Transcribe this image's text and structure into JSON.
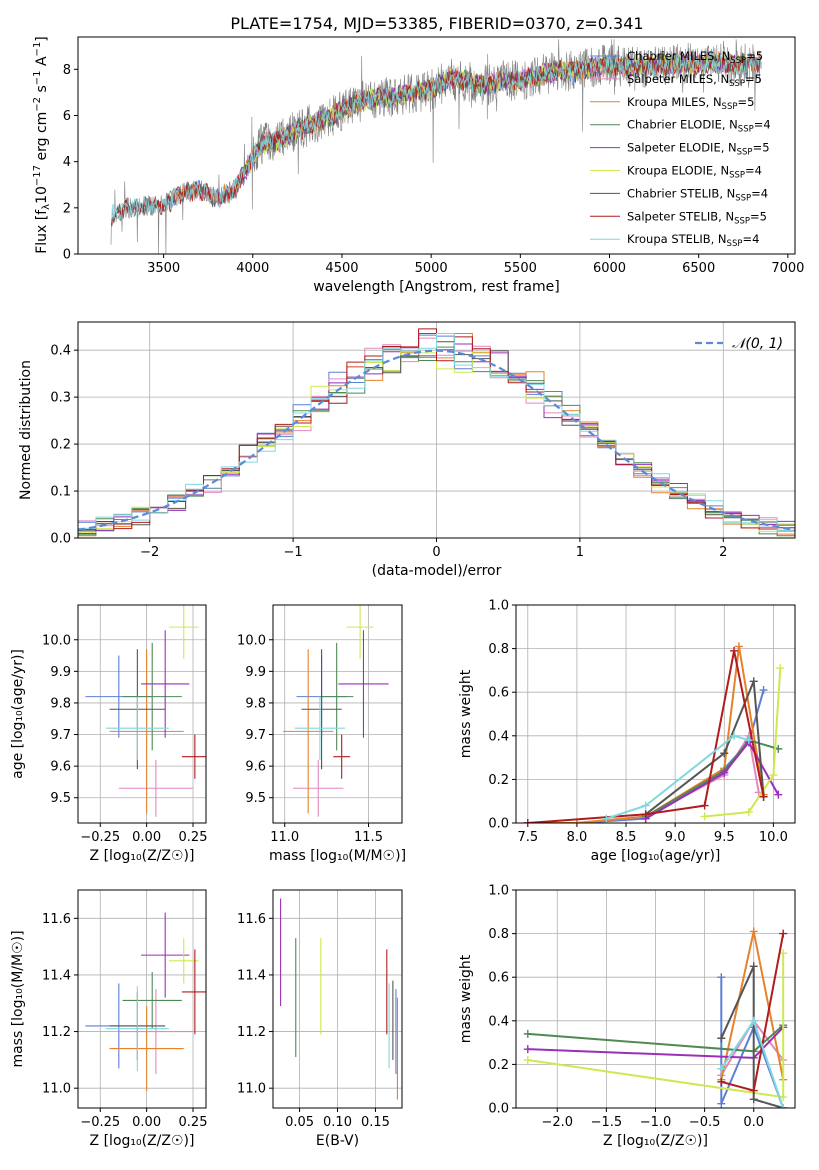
{
  "page": {
    "title": "PLATE=1754, MJD=53385, FIBERID=0370, z=0.341"
  },
  "colors": {
    "chabrier_miles": "#5b7fd6",
    "salpeter_miles": "#e389c0",
    "kroupa_miles": "#e6822c",
    "chabrier_elodie": "#4f8a55",
    "salpeter_elodie": "#9a2fb8",
    "kroupa_elodie": "#cde94f",
    "chabrier_stelib": "#555555",
    "salpeter_stelib": "#b01c1c",
    "kroupa_stelib": "#7fd8e0",
    "data": "#7f7f7f"
  },
  "chart_data": [
    {
      "id": "spectrum",
      "type": "line",
      "xlabel": "wavelength [Angstrom, rest frame]",
      "ylabel_main": "Flux [f",
      "ylabel_sub": "λ",
      "ylabel_rest": "10",
      "ylabel_exp": "−17",
      "ylabel_end": " erg cm",
      "ylabel_exp2": "−2",
      "ylabel_end2": " s",
      "ylabel_exp3": "−1",
      "ylabel_end3": " A",
      "ylabel_exp4": "−1",
      "ylabel_close": "]",
      "xlim": [
        3020,
        7040
      ],
      "ylim": [
        0,
        9.4
      ],
      "xticks": [
        3500,
        4000,
        4500,
        5000,
        5500,
        6000,
        6500,
        7000
      ],
      "yticks": [
        0,
        2,
        4,
        6,
        8
      ],
      "continuum": [
        [
          3200,
          0
        ],
        [
          3210,
          1.7
        ],
        [
          3300,
          2.0
        ],
        [
          3400,
          2.1
        ],
        [
          3500,
          2.1
        ],
        [
          3600,
          2.6
        ],
        [
          3700,
          2.8
        ],
        [
          3800,
          2.4
        ],
        [
          3900,
          2.8
        ],
        [
          4000,
          4.2
        ],
        [
          4050,
          4.8
        ],
        [
          4150,
          4.9
        ],
        [
          4250,
          5.4
        ],
        [
          4400,
          5.8
        ],
        [
          4500,
          6.2
        ],
        [
          4600,
          6.6
        ],
        [
          4700,
          6.8
        ],
        [
          4800,
          6.8
        ],
        [
          4900,
          7.0
        ],
        [
          5000,
          7.1
        ],
        [
          5100,
          7.6
        ],
        [
          5200,
          7.5
        ],
        [
          5300,
          7.3
        ],
        [
          5400,
          7.5
        ],
        [
          5500,
          7.5
        ],
        [
          5600,
          7.7
        ],
        [
          5700,
          7.9
        ],
        [
          5800,
          7.9
        ],
        [
          5900,
          8.1
        ],
        [
          6000,
          8.2
        ],
        [
          6100,
          8.1
        ],
        [
          6200,
          8.1
        ],
        [
          6300,
          8.2
        ],
        [
          6400,
          8.3
        ],
        [
          6500,
          8.2
        ],
        [
          6600,
          8.3
        ],
        [
          6700,
          8.2
        ],
        [
          6800,
          8.3
        ],
        [
          6850,
          8.3
        ]
      ],
      "legend": [
        {
          "key": "chabrier_miles",
          "label": "Chabrier MILES, N",
          "sub": "SSP",
          "tail": "=5"
        },
        {
          "key": "salpeter_miles",
          "label": "Salpeter MILES, N",
          "sub": "SSP",
          "tail": "=5"
        },
        {
          "key": "kroupa_miles",
          "label": "Kroupa MILES, N",
          "sub": "SSP",
          "tail": "=5"
        },
        {
          "key": "chabrier_elodie",
          "label": "Chabrier ELODIE, N",
          "sub": "SSP",
          "tail": "=4"
        },
        {
          "key": "salpeter_elodie",
          "label": "Salpeter ELODIE, N",
          "sub": "SSP",
          "tail": "=5"
        },
        {
          "key": "kroupa_elodie",
          "label": "Kroupa ELODIE, N",
          "sub": "SSP",
          "tail": "=4"
        },
        {
          "key": "chabrier_stelib",
          "label": "Chabrier STELIB, N",
          "sub": "SSP",
          "tail": "=4"
        },
        {
          "key": "salpeter_stelib",
          "label": "Salpeter STELIB, N",
          "sub": "SSP",
          "tail": "=5"
        },
        {
          "key": "kroupa_stelib",
          "label": "Kroupa STELIB, N",
          "sub": "SSP",
          "tail": "=4"
        }
      ]
    },
    {
      "id": "residuals",
      "type": "line",
      "xlabel": "(data-model)/error",
      "ylabel": "Normed distribution",
      "xlim": [
        -2.5,
        2.5
      ],
      "ylim": [
        0,
        0.46
      ],
      "xticks": [
        -2,
        -1,
        0,
        1,
        2
      ],
      "yticks": [
        0.0,
        0.1,
        0.2,
        0.3,
        0.4
      ],
      "legend_label": "𝒩(0, 1)"
    },
    {
      "id": "age_vs_z",
      "type": "scatter",
      "xlabel": "Z [log₁₀(Z/Z☉)]",
      "ylabel": "age  [log₁₀(age/yr)]",
      "xlim": [
        -0.37,
        0.32
      ],
      "ylim": [
        9.42,
        10.11
      ],
      "xticks": [
        -0.25,
        0.0,
        0.25
      ],
      "yticks": [
        9.5,
        9.6,
        9.7,
        9.8,
        9.9,
        10.0
      ],
      "points": [
        {
          "key": "chabrier_miles",
          "x": -0.15,
          "y": 9.82,
          "xerr": 0.18,
          "yerr": 0.13
        },
        {
          "key": "salpeter_miles",
          "x": 0.05,
          "y": 9.53,
          "xerr": 0.2,
          "yerr": 0.09
        },
        {
          "key": "kroupa_miles",
          "x": 0.0,
          "y": 9.71,
          "xerr": 0.2,
          "yerr": 0.26
        },
        {
          "key": "chabrier_elodie",
          "x": 0.03,
          "y": 9.82,
          "xerr": 0.16,
          "yerr": 0.17
        },
        {
          "key": "salpeter_elodie",
          "x": 0.1,
          "y": 9.86,
          "xerr": 0.13,
          "yerr": 0.17
        },
        {
          "key": "kroupa_elodie",
          "x": 0.2,
          "y": 10.04,
          "xerr": 0.08,
          "yerr": 0.1
        },
        {
          "key": "chabrier_stelib",
          "x": -0.05,
          "y": 9.78,
          "xerr": 0.15,
          "yerr": 0.19
        },
        {
          "key": "salpeter_stelib",
          "x": 0.26,
          "y": 9.63,
          "xerr": 0.07,
          "yerr": 0.07
        },
        {
          "key": "kroupa_stelib",
          "x": -0.05,
          "y": 9.72,
          "xerr": 0.17,
          "yerr": 0.1
        }
      ]
    },
    {
      "id": "age_vs_mass",
      "type": "scatter",
      "xlabel": "mass [log₁₀(M/M☉)]",
      "ylabel": "",
      "xlim": [
        10.93,
        11.7
      ],
      "ylim": [
        9.42,
        10.11
      ],
      "xticks": [
        11.0,
        11.5
      ],
      "yticks": [
        9.5,
        9.6,
        9.7,
        9.8,
        9.9,
        10.0
      ],
      "points": [
        {
          "key": "chabrier_miles",
          "x": 11.22,
          "y": 9.82,
          "xerr": 0.15,
          "yerr": 0.13
        },
        {
          "key": "salpeter_miles",
          "x": 11.2,
          "y": 9.53,
          "xerr": 0.15,
          "yerr": 0.09
        },
        {
          "key": "kroupa_miles",
          "x": 11.14,
          "y": 9.71,
          "xerr": 0.15,
          "yerr": 0.26
        },
        {
          "key": "chabrier_elodie",
          "x": 11.31,
          "y": 9.82,
          "xerr": 0.1,
          "yerr": 0.17
        },
        {
          "key": "salpeter_elodie",
          "x": 11.47,
          "y": 9.86,
          "xerr": 0.15,
          "yerr": 0.17
        },
        {
          "key": "kroupa_elodie",
          "x": 11.45,
          "y": 10.04,
          "xerr": 0.08,
          "yerr": 0.1
        },
        {
          "key": "chabrier_stelib",
          "x": 11.22,
          "y": 9.78,
          "xerr": 0.12,
          "yerr": 0.19
        },
        {
          "key": "salpeter_stelib",
          "x": 11.34,
          "y": 9.63,
          "xerr": 0.05,
          "yerr": 0.07
        },
        {
          "key": "kroupa_stelib",
          "x": 11.21,
          "y": 9.72,
          "xerr": 0.15,
          "yerr": 0.1
        }
      ]
    },
    {
      "id": "weight_vs_age",
      "type": "line",
      "xlabel": "age  [log₁₀(age/yr)]",
      "ylabel": "mass weight",
      "xlim": [
        7.38,
        10.22
      ],
      "ylim": [
        0,
        1.0
      ],
      "xticks": [
        7.5,
        8.0,
        8.5,
        9.0,
        9.5,
        10.0
      ],
      "yticks": [
        0.0,
        0.2,
        0.4,
        0.6,
        0.8,
        1.0
      ],
      "series": [
        {
          "key": "chabrier_miles",
          "x": [
            7.5,
            8.0,
            8.7,
            9.5,
            9.75,
            9.9
          ],
          "y": [
            0.0,
            0.0,
            0.02,
            0.25,
            0.37,
            0.61
          ]
        },
        {
          "key": "salpeter_miles",
          "x": [
            7.5,
            8.0,
            8.7,
            9.5,
            9.75,
            9.85
          ],
          "y": [
            0.0,
            0.0,
            0.03,
            0.22,
            0.4,
            0.14
          ]
        },
        {
          "key": "kroupa_miles",
          "x": [
            7.5,
            8.0,
            8.7,
            9.5,
            9.65,
            9.9
          ],
          "y": [
            0.0,
            0.0,
            0.03,
            0.25,
            0.81,
            0.13
          ]
        },
        {
          "key": "chabrier_elodie",
          "x": [
            8.7,
            9.5,
            9.75,
            10.05
          ],
          "y": [
            0.03,
            0.24,
            0.38,
            0.34
          ]
        },
        {
          "key": "salpeter_elodie",
          "x": [
            8.7,
            9.5,
            9.75,
            10.05
          ],
          "y": [
            0.02,
            0.23,
            0.37,
            0.13
          ]
        },
        {
          "key": "kroupa_elodie",
          "x": [
            9.3,
            9.75,
            10.0,
            10.07
          ],
          "y": [
            0.03,
            0.05,
            0.22,
            0.71
          ]
        },
        {
          "key": "chabrier_stelib",
          "x": [
            8.7,
            9.5,
            9.8,
            9.9
          ],
          "y": [
            0.04,
            0.32,
            0.65,
            0.12
          ]
        },
        {
          "key": "salpeter_stelib",
          "x": [
            7.5,
            8.7,
            9.3,
            9.6,
            9.9
          ],
          "y": [
            0.0,
            0.04,
            0.08,
            0.79,
            0.12
          ]
        },
        {
          "key": "kroupa_stelib",
          "x": [
            8.3,
            8.7,
            9.6,
            9.75
          ],
          "y": [
            0.02,
            0.08,
            0.4,
            0.38
          ]
        }
      ]
    },
    {
      "id": "mass_vs_z",
      "type": "scatter",
      "xlabel": "Z [log₁₀(Z/Z☉)]",
      "ylabel": "mass [log₁₀(M/M☉)]",
      "xlim": [
        -0.37,
        0.32
      ],
      "ylim": [
        10.93,
        11.7
      ],
      "xticks": [
        -0.25,
        0.0,
        0.25
      ],
      "yticks": [
        11.0,
        11.2,
        11.4,
        11.6
      ],
      "points": [
        {
          "key": "chabrier_miles",
          "x": -0.15,
          "y": 11.22,
          "xerr": 0.18,
          "yerr": 0.15
        },
        {
          "key": "salpeter_miles",
          "x": 0.05,
          "y": 11.2,
          "xerr": 0.2,
          "yerr": 0.15
        },
        {
          "key": "kroupa_miles",
          "x": 0.0,
          "y": 11.14,
          "xerr": 0.2,
          "yerr": 0.15
        },
        {
          "key": "chabrier_elodie",
          "x": 0.03,
          "y": 11.31,
          "xerr": 0.16,
          "yerr": 0.1
        },
        {
          "key": "salpeter_elodie",
          "x": 0.1,
          "y": 11.47,
          "xerr": 0.13,
          "yerr": 0.15
        },
        {
          "key": "kroupa_elodie",
          "x": 0.2,
          "y": 11.45,
          "xerr": 0.08,
          "yerr": 0.08
        },
        {
          "key": "chabrier_stelib",
          "x": -0.05,
          "y": 11.22,
          "xerr": 0.15,
          "yerr": 0.12
        },
        {
          "key": "salpeter_stelib",
          "x": 0.26,
          "y": 11.34,
          "xerr": 0.07,
          "yerr": 0.15
        },
        {
          "key": "kroupa_stelib",
          "x": -0.05,
          "y": 11.21,
          "xerr": 0.17,
          "yerr": 0.15
        }
      ]
    },
    {
      "id": "mass_vs_ebv",
      "type": "scatter",
      "xlabel": "E(B-V)",
      "ylabel": "",
      "xlim": [
        0.015,
        0.185
      ],
      "ylim": [
        10.93,
        11.7
      ],
      "xticks": [
        0.05,
        0.1,
        0.15
      ],
      "yticks": [
        11.0,
        11.2,
        11.4,
        11.6
      ],
      "points": [
        {
          "key": "salpeter_elodie",
          "x": 0.025,
          "y": 11.48,
          "xerr": 0,
          "yerr": 0.19
        },
        {
          "key": "chabrier_elodie",
          "x": 0.045,
          "y": 11.32,
          "xerr": 0,
          "yerr": 0.21
        },
        {
          "key": "kroupa_elodie",
          "x": 0.078,
          "y": 11.36,
          "xerr": 0,
          "yerr": 0.17
        },
        {
          "key": "salpeter_stelib",
          "x": 0.165,
          "y": 11.34,
          "xerr": 0,
          "yerr": 0.15
        },
        {
          "key": "kroupa_stelib",
          "x": 0.168,
          "y": 11.22,
          "xerr": 0,
          "yerr": 0.15
        },
        {
          "key": "chabrier_stelib",
          "x": 0.173,
          "y": 11.24,
          "xerr": 0,
          "yerr": 0.14
        },
        {
          "key": "chabrier_miles",
          "x": 0.177,
          "y": 11.2,
          "xerr": 0,
          "yerr": 0.15
        },
        {
          "key": "kroupa_miles",
          "x": 0.179,
          "y": 11.14,
          "xerr": 0,
          "yerr": 0.18
        }
      ]
    },
    {
      "id": "weight_vs_z",
      "type": "line",
      "xlabel": "Z [log₁₀(Z/Z☉)]",
      "ylabel": "mass weight",
      "xlim": [
        -2.42,
        0.42
      ],
      "ylim": [
        0,
        1.0
      ],
      "xticks": [
        -2.0,
        -1.5,
        -1.0,
        -0.5,
        0.0
      ],
      "yticks": [
        0.0,
        0.2,
        0.4,
        0.6,
        0.8,
        1.0
      ],
      "series": [
        {
          "key": "chabrier_miles",
          "x": [
            -0.33,
            -0.33,
            0.0,
            0.3
          ],
          "y": [
            0.6,
            0.02,
            0.37,
            0.0
          ]
        },
        {
          "key": "salpeter_miles",
          "x": [
            -0.33,
            0.0,
            0.3
          ],
          "y": [
            0.15,
            0.4,
            0.22
          ]
        },
        {
          "key": "kroupa_miles",
          "x": [
            -0.33,
            0.0,
            0.3
          ],
          "y": [
            0.13,
            0.81,
            0.13
          ]
        },
        {
          "key": "chabrier_elodie",
          "x": [
            -2.3,
            0.0,
            0.3
          ],
          "y": [
            0.34,
            0.26,
            0.38
          ]
        },
        {
          "key": "salpeter_elodie",
          "x": [
            -2.3,
            0.0,
            0.3
          ],
          "y": [
            0.27,
            0.23,
            0.37
          ]
        },
        {
          "key": "kroupa_elodie",
          "x": [
            -2.3,
            0.3,
            0.3
          ],
          "y": [
            0.22,
            0.05,
            0.71
          ]
        },
        {
          "key": "chabrier_stelib",
          "x": [
            -0.33,
            0.0,
            0.0,
            0.3
          ],
          "y": [
            0.32,
            0.65,
            0.04,
            0.0
          ]
        },
        {
          "key": "salpeter_stelib",
          "x": [
            -0.33,
            0.0,
            0.3
          ],
          "y": [
            0.12,
            0.08,
            0.8
          ]
        },
        {
          "key": "kroupa_stelib",
          "x": [
            -0.33,
            0.0,
            0.3
          ],
          "y": [
            0.18,
            0.4,
            0.0
          ]
        }
      ]
    }
  ]
}
